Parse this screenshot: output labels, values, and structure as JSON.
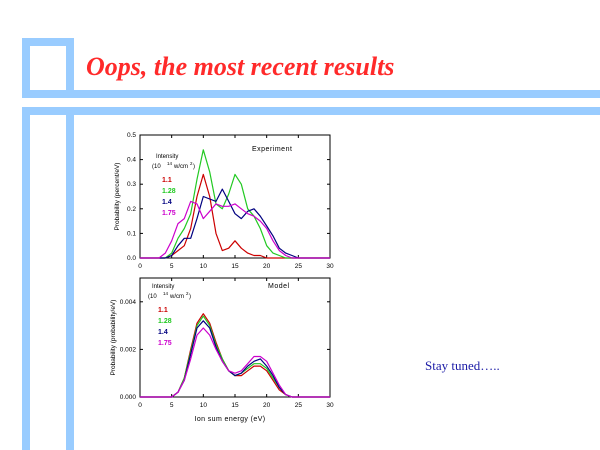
{
  "slide": {
    "title": "Oops, the most recent results",
    "note": "Stay tuned…..",
    "frame_color": "#99ccff",
    "title_color": "#ff2a2a",
    "note_color": "#1a1aa6"
  },
  "chart_data": [
    {
      "type": "line",
      "title": "Experiment",
      "xlabel": "",
      "ylabel": "Probability (percent/eV)",
      "xlim": [
        0,
        30
      ],
      "ylim": [
        0,
        0.5
      ],
      "xticks": [
        "0",
        "5",
        "10",
        "15",
        "20",
        "25",
        "30"
      ],
      "yticks": [
        "0.0",
        "0.1",
        "0.2",
        "0.3",
        "0.4",
        "0.5"
      ],
      "legend_title": [
        "Intensity",
        "(10",
        "14",
        "w/cm",
        "2",
        ")"
      ],
      "x": [
        0,
        1,
        2,
        3,
        4,
        5,
        6,
        7,
        8,
        9,
        10,
        11,
        12,
        13,
        14,
        15,
        16,
        17,
        18,
        19,
        20,
        21,
        22,
        23,
        24,
        25,
        26,
        27,
        28,
        29,
        30
      ],
      "series": [
        {
          "name": "1.1",
          "color": "#cc0000",
          "values": [
            0,
            0,
            0,
            0,
            0,
            0.01,
            0.03,
            0.05,
            0.12,
            0.25,
            0.34,
            0.25,
            0.1,
            0.03,
            0.04,
            0.07,
            0.04,
            0.02,
            0.01,
            0.01,
            0,
            0,
            0,
            0,
            0,
            0,
            0,
            0,
            0,
            0,
            0
          ]
        },
        {
          "name": "1.28",
          "color": "#22c922",
          "values": [
            0,
            0,
            0,
            0,
            0,
            0.02,
            0.08,
            0.12,
            0.18,
            0.32,
            0.44,
            0.35,
            0.22,
            0.2,
            0.26,
            0.34,
            0.3,
            0.2,
            0.17,
            0.12,
            0.05,
            0.02,
            0.01,
            0,
            0,
            0,
            0,
            0,
            0,
            0,
            0
          ]
        },
        {
          "name": "1.4",
          "color": "#000080",
          "values": [
            0,
            0,
            0,
            0,
            0,
            0.01,
            0.05,
            0.08,
            0.08,
            0.16,
            0.25,
            0.24,
            0.23,
            0.28,
            0.23,
            0.18,
            0.16,
            0.19,
            0.2,
            0.17,
            0.13,
            0.09,
            0.04,
            0.02,
            0.01,
            0,
            0,
            0,
            0,
            0,
            0
          ]
        },
        {
          "name": "1.75",
          "color": "#cc00cc",
          "values": [
            0,
            0,
            0,
            0,
            0.02,
            0.07,
            0.14,
            0.16,
            0.23,
            0.22,
            0.16,
            0.19,
            0.22,
            0.21,
            0.21,
            0.22,
            0.2,
            0.18,
            0.17,
            0.15,
            0.12,
            0.07,
            0.03,
            0.01,
            0,
            0,
            0,
            0,
            0,
            0,
            0
          ]
        }
      ]
    },
    {
      "type": "line",
      "title": "Model",
      "xlabel": "Ion sum energy (eV)",
      "ylabel": "Probability (probability/eV)",
      "xlim": [
        0,
        30
      ],
      "ylim": [
        0,
        0.005
      ],
      "xticks": [
        "0",
        "5",
        "10",
        "15",
        "20",
        "25",
        "30"
      ],
      "yticks": [
        "0.000",
        "0.002",
        "0.004"
      ],
      "legend_title": [
        "Intensity",
        "(10",
        "14",
        "w/cm",
        "2",
        ")"
      ],
      "x": [
        0,
        1,
        2,
        3,
        4,
        5,
        6,
        7,
        8,
        9,
        10,
        11,
        12,
        13,
        14,
        15,
        16,
        17,
        18,
        19,
        20,
        21,
        22,
        23,
        24,
        25,
        26,
        27,
        28,
        29,
        30
      ],
      "series": [
        {
          "name": "1.1",
          "color": "#cc0000",
          "values": [
            0,
            0,
            0,
            0,
            0,
            0,
            0.0002,
            0.0008,
            0.002,
            0.0031,
            0.0035,
            0.0031,
            0.0023,
            0.0016,
            0.0011,
            0.0009,
            0.0009,
            0.0011,
            0.0013,
            0.0013,
            0.0011,
            0.0007,
            0.0003,
            0.0001,
            0,
            0,
            0,
            0,
            0,
            0,
            0
          ]
        },
        {
          "name": "1.28",
          "color": "#22c922",
          "values": [
            0,
            0,
            0,
            0,
            0,
            0,
            0.0002,
            0.0008,
            0.0019,
            0.003,
            0.0034,
            0.003,
            0.0022,
            0.0016,
            0.0011,
            0.0009,
            0.001,
            0.0012,
            0.0014,
            0.0014,
            0.0012,
            0.0008,
            0.0004,
            0.0001,
            0,
            0,
            0,
            0,
            0,
            0,
            0
          ]
        },
        {
          "name": "1.4",
          "color": "#000080",
          "values": [
            0,
            0,
            0,
            0,
            0,
            0,
            0.0002,
            0.0007,
            0.0018,
            0.0029,
            0.0032,
            0.0029,
            0.0021,
            0.0015,
            0.0011,
            0.0009,
            0.001,
            0.0013,
            0.0015,
            0.0016,
            0.0013,
            0.0009,
            0.0004,
            0.0001,
            0,
            0,
            0,
            0,
            0,
            0,
            0
          ]
        },
        {
          "name": "1.75",
          "color": "#cc00cc",
          "values": [
            0,
            0,
            0,
            0,
            0,
            0,
            0.0002,
            0.0007,
            0.0016,
            0.0026,
            0.0029,
            0.0026,
            0.002,
            0.0015,
            0.0011,
            0.001,
            0.0011,
            0.0014,
            0.0017,
            0.0017,
            0.0015,
            0.001,
            0.0005,
            0.0001,
            0,
            0,
            0,
            0,
            0,
            0,
            0
          ]
        }
      ]
    }
  ]
}
